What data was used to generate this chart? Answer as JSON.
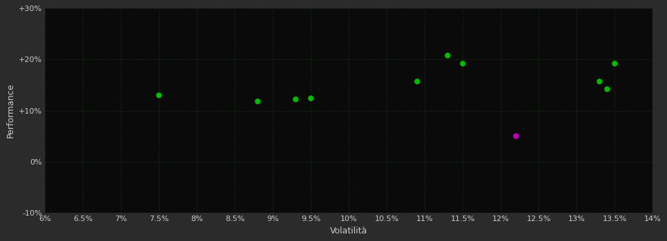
{
  "background_color": "#2b2b2b",
  "plot_bg_color": "#0a0a0a",
  "grid_color": "#1a3a1a",
  "grid_style": ":",
  "grid_linewidth": 0.8,
  "tick_color": "#cccccc",
  "label_color": "#cccccc",
  "xlabel": "Volatilità",
  "ylabel": "Performance",
  "xlim": [
    0.06,
    0.14
  ],
  "ylim": [
    -0.1,
    0.3
  ],
  "xticks": [
    0.06,
    0.065,
    0.07,
    0.075,
    0.08,
    0.085,
    0.09,
    0.095,
    0.1,
    0.105,
    0.11,
    0.115,
    0.12,
    0.125,
    0.13,
    0.135,
    0.14
  ],
  "yticks": [
    -0.1,
    0.0,
    0.1,
    0.2,
    0.3
  ],
  "ytick_labels": [
    "-10%",
    "0%",
    "+10%",
    "+20%",
    "+30%"
  ],
  "xtick_labels": [
    "6%",
    "6.5%",
    "7%",
    "7.5%",
    "8%",
    "8.5%",
    "9%",
    "9.5%",
    "10%",
    "10.5%",
    "11%",
    "11.5%",
    "12%",
    "12.5%",
    "13%",
    "13.5%",
    "14%"
  ],
  "green_points": [
    [
      0.075,
      0.13
    ],
    [
      0.088,
      0.118
    ],
    [
      0.093,
      0.122
    ],
    [
      0.095,
      0.124
    ],
    [
      0.109,
      0.157
    ],
    [
      0.113,
      0.208
    ],
    [
      0.115,
      0.192
    ],
    [
      0.133,
      0.157
    ],
    [
      0.134,
      0.142
    ],
    [
      0.135,
      0.192
    ]
  ],
  "magenta_points": [
    [
      0.122,
      0.05
    ]
  ],
  "green_color": "#00bb00",
  "magenta_color": "#bb00bb",
  "marker_size": 6,
  "tick_fontsize": 8,
  "label_fontsize": 9
}
